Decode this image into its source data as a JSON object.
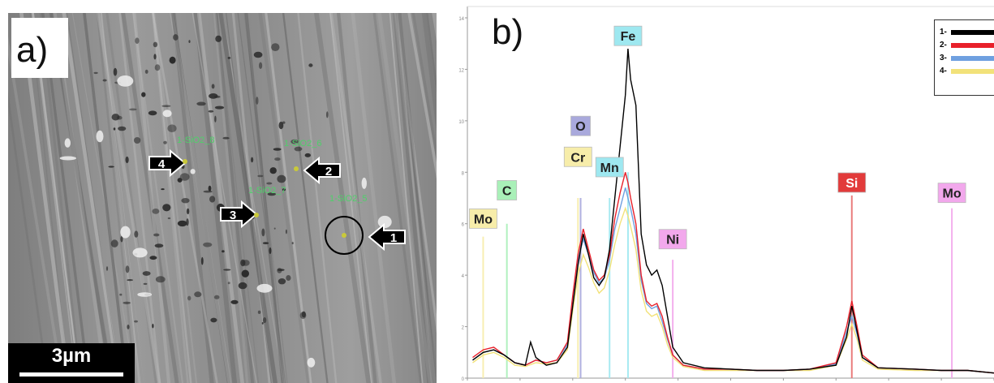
{
  "panels": {
    "a_label": "a)",
    "b_label": "b)",
    "scale_bar": "3µm"
  },
  "sem": {
    "markers": [
      {
        "number": "1",
        "site_label": "1-SiO2_5"
      },
      {
        "number": "2",
        "site_label": "1-SiO2_6"
      },
      {
        "number": "3",
        "site_label": "1-SiO2_7"
      },
      {
        "number": "4",
        "site_label": "1-SiO2_8"
      }
    ]
  },
  "chart_data": {
    "type": "line",
    "title": "",
    "xlabel": "",
    "ylabel": "",
    "xlim": [
      0,
      10
    ],
    "ylim": [
      0,
      14
    ],
    "y_ticks": [
      0,
      2,
      4,
      6,
      8,
      10,
      12,
      14
    ],
    "grid": false,
    "legend_position": "top-right",
    "series": [
      {
        "name": "1-",
        "color": "#000000",
        "points": [
          [
            0.1,
            0.7
          ],
          [
            0.3,
            1.0
          ],
          [
            0.5,
            1.1
          ],
          [
            0.7,
            0.9
          ],
          [
            0.9,
            0.6
          ],
          [
            1.1,
            0.5
          ],
          [
            1.2,
            1.4
          ],
          [
            1.3,
            0.8
          ],
          [
            1.5,
            0.5
          ],
          [
            1.7,
            0.6
          ],
          [
            1.9,
            1.2
          ],
          [
            2.0,
            2.8
          ],
          [
            2.1,
            4.4
          ],
          [
            2.2,
            5.6
          ],
          [
            2.3,
            4.8
          ],
          [
            2.4,
            3.9
          ],
          [
            2.5,
            3.6
          ],
          [
            2.6,
            3.9
          ],
          [
            2.7,
            5.0
          ],
          [
            2.8,
            7.0
          ],
          [
            2.9,
            9.0
          ],
          [
            3.0,
            11.0
          ],
          [
            3.05,
            12.8
          ],
          [
            3.1,
            11.6
          ],
          [
            3.2,
            10.6
          ],
          [
            3.3,
            5.6
          ],
          [
            3.4,
            4.4
          ],
          [
            3.5,
            4.0
          ],
          [
            3.6,
            4.2
          ],
          [
            3.7,
            3.6
          ],
          [
            3.8,
            2.4
          ],
          [
            3.9,
            1.2
          ],
          [
            4.1,
            0.6
          ],
          [
            4.5,
            0.4
          ],
          [
            5.0,
            0.35
          ],
          [
            5.5,
            0.3
          ],
          [
            6.0,
            0.3
          ],
          [
            6.5,
            0.35
          ],
          [
            7.0,
            0.5
          ],
          [
            7.2,
            1.6
          ],
          [
            7.3,
            2.8
          ],
          [
            7.4,
            1.8
          ],
          [
            7.5,
            0.8
          ],
          [
            7.8,
            0.4
          ],
          [
            8.5,
            0.35
          ],
          [
            9.0,
            0.3
          ],
          [
            9.5,
            0.3
          ],
          [
            10.0,
            0.2
          ]
        ]
      },
      {
        "name": "2-",
        "color": "#e8202a",
        "points": [
          [
            0.1,
            0.8
          ],
          [
            0.3,
            1.1
          ],
          [
            0.5,
            1.2
          ],
          [
            0.7,
            0.9
          ],
          [
            0.9,
            0.6
          ],
          [
            1.1,
            0.5
          ],
          [
            1.3,
            0.7
          ],
          [
            1.5,
            0.6
          ],
          [
            1.7,
            0.7
          ],
          [
            1.9,
            1.4
          ],
          [
            2.0,
            3.2
          ],
          [
            2.1,
            4.8
          ],
          [
            2.2,
            5.8
          ],
          [
            2.3,
            5.0
          ],
          [
            2.4,
            4.2
          ],
          [
            2.5,
            3.8
          ],
          [
            2.6,
            4.0
          ],
          [
            2.7,
            4.8
          ],
          [
            2.8,
            6.2
          ],
          [
            2.9,
            7.2
          ],
          [
            3.0,
            8.0
          ],
          [
            3.05,
            7.6
          ],
          [
            3.1,
            7.0
          ],
          [
            3.2,
            6.0
          ],
          [
            3.3,
            4.0
          ],
          [
            3.4,
            3.0
          ],
          [
            3.5,
            2.8
          ],
          [
            3.6,
            2.9
          ],
          [
            3.7,
            2.4
          ],
          [
            3.8,
            1.6
          ],
          [
            3.9,
            0.9
          ],
          [
            4.1,
            0.5
          ],
          [
            4.5,
            0.35
          ],
          [
            5.0,
            0.35
          ],
          [
            5.5,
            0.3
          ],
          [
            6.0,
            0.3
          ],
          [
            6.5,
            0.35
          ],
          [
            7.0,
            0.6
          ],
          [
            7.2,
            2.0
          ],
          [
            7.3,
            3.0
          ],
          [
            7.4,
            2.0
          ],
          [
            7.5,
            0.9
          ],
          [
            7.8,
            0.4
          ],
          [
            8.5,
            0.35
          ],
          [
            9.0,
            0.3
          ],
          [
            9.5,
            0.3
          ],
          [
            10.0,
            0.2
          ]
        ]
      },
      {
        "name": "3-",
        "color": "#6fa0e0",
        "points": [
          [
            0.1,
            0.7
          ],
          [
            0.3,
            1.0
          ],
          [
            0.5,
            1.1
          ],
          [
            0.7,
            0.9
          ],
          [
            0.9,
            0.6
          ],
          [
            1.1,
            0.5
          ],
          [
            1.3,
            0.7
          ],
          [
            1.5,
            0.6
          ],
          [
            1.7,
            0.7
          ],
          [
            1.9,
            1.3
          ],
          [
            2.0,
            3.0
          ],
          [
            2.1,
            4.6
          ],
          [
            2.2,
            5.4
          ],
          [
            2.3,
            4.8
          ],
          [
            2.4,
            4.1
          ],
          [
            2.5,
            3.7
          ],
          [
            2.6,
            3.9
          ],
          [
            2.7,
            4.6
          ],
          [
            2.8,
            5.8
          ],
          [
            2.9,
            6.6
          ],
          [
            3.0,
            7.4
          ],
          [
            3.05,
            7.0
          ],
          [
            3.1,
            6.6
          ],
          [
            3.2,
            5.6
          ],
          [
            3.3,
            3.8
          ],
          [
            3.4,
            2.9
          ],
          [
            3.5,
            2.7
          ],
          [
            3.6,
            2.8
          ],
          [
            3.7,
            2.2
          ],
          [
            3.8,
            1.5
          ],
          [
            3.9,
            0.9
          ],
          [
            4.1,
            0.5
          ],
          [
            4.5,
            0.35
          ],
          [
            5.0,
            0.35
          ],
          [
            5.5,
            0.3
          ],
          [
            6.0,
            0.3
          ],
          [
            6.5,
            0.35
          ],
          [
            7.0,
            0.55
          ],
          [
            7.2,
            1.8
          ],
          [
            7.3,
            2.4
          ],
          [
            7.4,
            1.7
          ],
          [
            7.5,
            0.8
          ],
          [
            7.8,
            0.4
          ],
          [
            8.5,
            0.35
          ],
          [
            9.0,
            0.3
          ],
          [
            9.5,
            0.3
          ],
          [
            10.0,
            0.2
          ]
        ]
      },
      {
        "name": "4-",
        "color": "#f2e27a",
        "points": [
          [
            0.1,
            0.6
          ],
          [
            0.3,
            0.9
          ],
          [
            0.5,
            1.0
          ],
          [
            0.7,
            0.8
          ],
          [
            0.9,
            0.5
          ],
          [
            1.1,
            0.45
          ],
          [
            1.3,
            0.6
          ],
          [
            1.5,
            0.55
          ],
          [
            1.7,
            0.6
          ],
          [
            1.9,
            1.1
          ],
          [
            2.0,
            2.6
          ],
          [
            2.1,
            4.0
          ],
          [
            2.2,
            4.8
          ],
          [
            2.3,
            4.3
          ],
          [
            2.4,
            3.7
          ],
          [
            2.5,
            3.3
          ],
          [
            2.6,
            3.5
          ],
          [
            2.7,
            4.2
          ],
          [
            2.8,
            5.2
          ],
          [
            2.9,
            6.0
          ],
          [
            3.0,
            6.6
          ],
          [
            3.05,
            6.3
          ],
          [
            3.1,
            5.9
          ],
          [
            3.2,
            5.0
          ],
          [
            3.3,
            3.4
          ],
          [
            3.4,
            2.6
          ],
          [
            3.5,
            2.4
          ],
          [
            3.6,
            2.5
          ],
          [
            3.7,
            2.0
          ],
          [
            3.8,
            1.3
          ],
          [
            3.9,
            0.8
          ],
          [
            4.1,
            0.45
          ],
          [
            4.5,
            0.3
          ],
          [
            5.0,
            0.3
          ],
          [
            5.5,
            0.3
          ],
          [
            6.0,
            0.3
          ],
          [
            6.5,
            0.3
          ],
          [
            7.0,
            0.5
          ],
          [
            7.2,
            1.5
          ],
          [
            7.3,
            2.1
          ],
          [
            7.4,
            1.5
          ],
          [
            7.5,
            0.7
          ],
          [
            7.8,
            0.35
          ],
          [
            8.5,
            0.3
          ],
          [
            9.0,
            0.3
          ],
          [
            9.5,
            0.3
          ],
          [
            10.0,
            0.2
          ]
        ]
      }
    ],
    "element_markers": [
      {
        "label": "Fe",
        "x": 3.05,
        "box_y": 13.3,
        "line_top": 8.0,
        "fill": "#9ee8f0",
        "line_color": "#9ee8f0"
      },
      {
        "label": "O",
        "x": 2.15,
        "box_y": 9.8,
        "line_top": 7.0,
        "fill": "#a9a9dc",
        "line_color": "#a9a9dc"
      },
      {
        "label": "Cr",
        "x": 2.1,
        "box_y": 8.6,
        "line_top": 7.0,
        "fill": "#f7edaa",
        "line_color": "#f7edaa"
      },
      {
        "label": "Mn",
        "x": 2.7,
        "box_y": 8.2,
        "line_top": 7.0,
        "fill": "#9ee8f0",
        "line_color": "#9ee8f0"
      },
      {
        "label": "C",
        "x": 0.75,
        "box_y": 7.3,
        "line_top": 6.0,
        "fill": "#a9f0b8",
        "line_color": "#a9f0b8"
      },
      {
        "label": "Mo",
        "x": 0.3,
        "box_y": 6.2,
        "line_top": 5.5,
        "fill": "#f7edaa",
        "line_color": "#f7edaa"
      },
      {
        "label": "Ni",
        "x": 3.9,
        "box_y": 5.4,
        "line_top": 4.6,
        "fill": "#f2a8ec",
        "line_color": "#f2a8ec"
      },
      {
        "label": "Si",
        "x": 7.3,
        "box_y": 7.6,
        "line_top": 7.1,
        "fill": "#e23b3b",
        "line_color": "#e87070"
      },
      {
        "label": "Mo",
        "x": 9.2,
        "box_y": 7.2,
        "line_top": 6.6,
        "fill": "#f2a8ec",
        "line_color": "#f2a8ec"
      }
    ]
  }
}
